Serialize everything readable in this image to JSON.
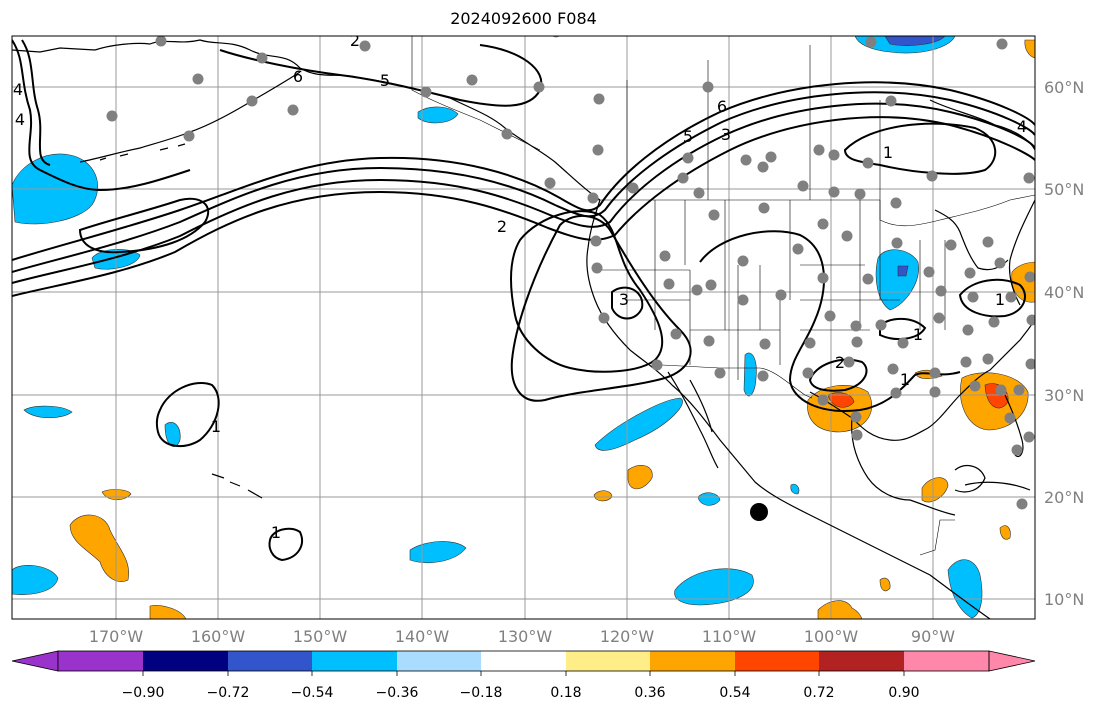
{
  "title": "2024092600 F084",
  "map": {
    "lon_labels": [
      "170°W",
      "160°W",
      "150°W",
      "140°W",
      "130°W",
      "120°W",
      "110°W",
      "100°W",
      "90°W"
    ],
    "lat_labels": [
      "60°N",
      "50°N",
      "40°N",
      "30°N",
      "20°N",
      "10°N"
    ],
    "contour_labels": [
      "4",
      "4",
      "6",
      "5",
      "6",
      "5",
      "3",
      "2",
      "1",
      "4",
      "3",
      "2",
      "1",
      "2",
      "1",
      "1",
      "1",
      "1"
    ],
    "grid": true,
    "colors": {
      "frame": "#000000",
      "grid": "#999999",
      "axis_label": "#808080",
      "contour": "#000000",
      "station": "#808080",
      "marker": "#000000"
    }
  },
  "colorbar": {
    "tick_labels": [
      "−0.90",
      "−0.72",
      "−0.54",
      "−0.36",
      "−0.18",
      "0.18",
      "0.36",
      "0.54",
      "0.72",
      "0.90"
    ],
    "ticks": [
      -0.9,
      -0.72,
      -0.54,
      -0.36,
      -0.18,
      0.18,
      0.36,
      0.54,
      0.72,
      0.9
    ],
    "colors": [
      "#9933cc",
      "#000080",
      "#3355cc",
      "#00bfff",
      "#aadcff",
      "#ffffff",
      "#ffee88",
      "#ffa500",
      "#ff4500",
      "#b22222",
      "#ff88aa"
    ],
    "extend": "both"
  }
}
